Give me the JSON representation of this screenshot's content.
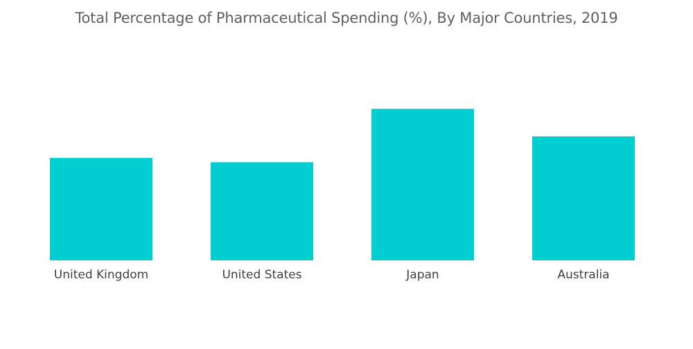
{
  "title": "Total Percentage of Pharmaceutical Spending (%), By Major Countries, 2019",
  "colors": {
    "bar": "#00ced1",
    "title": "#5f5f5f",
    "label": "#3f3f3f",
    "background": "#ffffff"
  },
  "chart_data": {
    "type": "bar",
    "title": "Total Percentage of Pharmaceutical Spending (%), By Major Countries, 2019",
    "categories": [
      "United Kingdom",
      "United States",
      "Japan",
      "Australia"
    ],
    "values": [
      11.9,
      11.4,
      17.6,
      14.4
    ],
    "ylim": [
      0,
      18.5
    ],
    "grid": false,
    "legend": "none",
    "y_axis_visible": false
  }
}
